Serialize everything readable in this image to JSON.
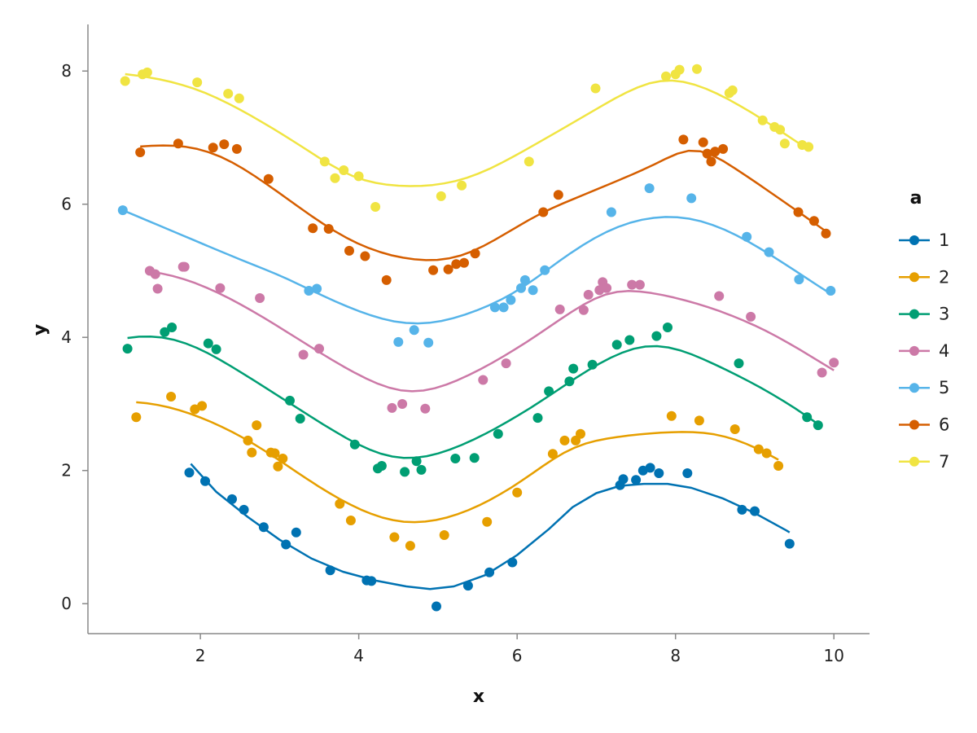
{
  "chart_data": {
    "type": "scatter",
    "xlabel": "x",
    "ylabel": "y",
    "xlim": [
      0.58,
      10.45
    ],
    "ylim": [
      -0.45,
      8.7
    ],
    "xticks": [
      2,
      4,
      6,
      8,
      10
    ],
    "yticks": [
      0,
      2,
      4,
      6,
      8
    ],
    "grid": false,
    "legend": {
      "title": "a",
      "position": "right"
    },
    "series": [
      {
        "name": "1",
        "color": "#0072B2",
        "points": [
          [
            1.86,
            1.97
          ],
          [
            2.06,
            1.84
          ],
          [
            2.4,
            1.57
          ],
          [
            2.55,
            1.41
          ],
          [
            2.8,
            1.15
          ],
          [
            3.08,
            0.89
          ],
          [
            3.21,
            1.07
          ],
          [
            3.64,
            0.5
          ],
          [
            4.1,
            0.35
          ],
          [
            4.16,
            0.34
          ],
          [
            4.98,
            -0.04
          ],
          [
            5.38,
            0.27
          ],
          [
            5.65,
            0.47
          ],
          [
            5.94,
            0.62
          ],
          [
            7.3,
            1.78
          ],
          [
            7.34,
            1.87
          ],
          [
            7.5,
            1.86
          ],
          [
            7.59,
            2.0
          ],
          [
            7.68,
            2.04
          ],
          [
            7.79,
            1.96
          ],
          [
            8.15,
            1.96
          ],
          [
            8.84,
            1.41
          ],
          [
            9.0,
            1.39
          ],
          [
            9.44,
            0.9
          ]
        ],
        "fit": [
          [
            1.88,
            2.1
          ],
          [
            2.2,
            1.68
          ],
          [
            2.6,
            1.3
          ],
          [
            3.0,
            0.96
          ],
          [
            3.4,
            0.68
          ],
          [
            3.8,
            0.48
          ],
          [
            4.2,
            0.35
          ],
          [
            4.6,
            0.26
          ],
          [
            4.9,
            0.22
          ],
          [
            5.2,
            0.26
          ],
          [
            5.6,
            0.43
          ],
          [
            6.0,
            0.73
          ],
          [
            6.4,
            1.12
          ],
          [
            6.7,
            1.45
          ],
          [
            7.0,
            1.66
          ],
          [
            7.3,
            1.77
          ],
          [
            7.6,
            1.8
          ],
          [
            7.9,
            1.8
          ],
          [
            8.2,
            1.74
          ],
          [
            8.6,
            1.58
          ],
          [
            9.0,
            1.36
          ],
          [
            9.4,
            1.1
          ],
          [
            9.44,
            1.07
          ]
        ]
      },
      {
        "name": "2",
        "color": "#E69F00",
        "points": [
          [
            1.19,
            2.8
          ],
          [
            1.63,
            3.11
          ],
          [
            1.93,
            2.92
          ],
          [
            2.02,
            2.97
          ],
          [
            2.6,
            2.45
          ],
          [
            2.65,
            2.27
          ],
          [
            2.71,
            2.68
          ],
          [
            2.89,
            2.27
          ],
          [
            2.94,
            2.26
          ],
          [
            2.98,
            2.06
          ],
          [
            3.04,
            2.18
          ],
          [
            3.76,
            1.5
          ],
          [
            3.9,
            1.25
          ],
          [
            4.45,
            1.0
          ],
          [
            4.65,
            0.87
          ],
          [
            5.08,
            1.03
          ],
          [
            5.62,
            1.23
          ],
          [
            6.0,
            1.67
          ],
          [
            6.45,
            2.25
          ],
          [
            6.6,
            2.45
          ],
          [
            6.74,
            2.45
          ],
          [
            6.8,
            2.55
          ],
          [
            7.95,
            2.82
          ],
          [
            8.3,
            2.75
          ],
          [
            8.75,
            2.62
          ],
          [
            9.05,
            2.32
          ],
          [
            9.15,
            2.26
          ],
          [
            9.3,
            2.07
          ]
        ]
      },
      {
        "name": "3",
        "color": "#009E73",
        "points": [
          [
            1.08,
            3.83
          ],
          [
            1.55,
            4.08
          ],
          [
            1.64,
            4.15
          ],
          [
            2.1,
            3.91
          ],
          [
            2.2,
            3.82
          ],
          [
            3.13,
            3.05
          ],
          [
            3.26,
            2.78
          ],
          [
            3.95,
            2.39
          ],
          [
            4.24,
            2.03
          ],
          [
            4.29,
            2.07
          ],
          [
            4.58,
            1.98
          ],
          [
            4.73,
            2.14
          ],
          [
            4.79,
            2.01
          ],
          [
            5.22,
            2.18
          ],
          [
            5.46,
            2.19
          ],
          [
            5.76,
            2.55
          ],
          [
            6.26,
            2.79
          ],
          [
            6.4,
            3.19
          ],
          [
            6.66,
            3.34
          ],
          [
            6.71,
            3.53
          ],
          [
            6.95,
            3.59
          ],
          [
            7.26,
            3.89
          ],
          [
            7.42,
            3.96
          ],
          [
            7.76,
            4.02
          ],
          [
            7.9,
            4.15
          ],
          [
            8.8,
            3.61
          ],
          [
            9.66,
            2.8
          ],
          [
            9.8,
            2.68
          ]
        ]
      },
      {
        "name": "4",
        "color": "#CC79A7",
        "points": [
          [
            1.36,
            5.0
          ],
          [
            1.43,
            4.95
          ],
          [
            1.46,
            4.73
          ],
          [
            1.78,
            5.06
          ],
          [
            1.8,
            5.06
          ],
          [
            2.25,
            4.74
          ],
          [
            2.75,
            4.59
          ],
          [
            3.3,
            3.74
          ],
          [
            3.5,
            3.83
          ],
          [
            4.42,
            2.94
          ],
          [
            4.55,
            3.0
          ],
          [
            4.84,
            2.93
          ],
          [
            5.57,
            3.36
          ],
          [
            5.86,
            3.61
          ],
          [
            6.54,
            4.42
          ],
          [
            6.84,
            4.41
          ],
          [
            6.9,
            4.64
          ],
          [
            7.04,
            4.71
          ],
          [
            7.08,
            4.83
          ],
          [
            7.13,
            4.74
          ],
          [
            7.45,
            4.79
          ],
          [
            7.55,
            4.79
          ],
          [
            8.55,
            4.62
          ],
          [
            8.95,
            4.31
          ],
          [
            9.85,
            3.47
          ],
          [
            10.0,
            3.62
          ]
        ]
      },
      {
        "name": "5",
        "color": "#56B4E9",
        "points": [
          [
            1.02,
            5.91
          ],
          [
            3.37,
            4.7
          ],
          [
            3.47,
            4.73
          ],
          [
            4.5,
            3.93
          ],
          [
            4.7,
            4.11
          ],
          [
            4.88,
            3.92
          ],
          [
            5.72,
            4.45
          ],
          [
            5.83,
            4.45
          ],
          [
            5.92,
            4.56
          ],
          [
            6.05,
            4.74
          ],
          [
            6.1,
            4.86
          ],
          [
            6.2,
            4.71
          ],
          [
            6.35,
            5.01
          ],
          [
            7.19,
            5.88
          ],
          [
            7.67,
            6.24
          ],
          [
            8.2,
            6.09
          ],
          [
            8.9,
            5.51
          ],
          [
            9.18,
            5.28
          ],
          [
            9.56,
            4.87
          ],
          [
            9.96,
            4.7
          ]
        ]
      },
      {
        "name": "6",
        "color": "#D55E00",
        "points": [
          [
            1.24,
            6.78
          ],
          [
            1.72,
            6.91
          ],
          [
            2.16,
            6.85
          ],
          [
            2.3,
            6.9
          ],
          [
            2.46,
            6.83
          ],
          [
            2.86,
            6.38
          ],
          [
            3.42,
            5.64
          ],
          [
            3.62,
            5.63
          ],
          [
            3.88,
            5.3
          ],
          [
            4.08,
            5.22
          ],
          [
            4.35,
            4.86
          ],
          [
            4.94,
            5.01
          ],
          [
            5.13,
            5.02
          ],
          [
            5.23,
            5.1
          ],
          [
            5.33,
            5.12
          ],
          [
            5.47,
            5.26
          ],
          [
            6.33,
            5.88
          ],
          [
            6.52,
            6.14
          ],
          [
            8.1,
            6.97
          ],
          [
            8.35,
            6.93
          ],
          [
            8.4,
            6.76
          ],
          [
            8.45,
            6.64
          ],
          [
            8.5,
            6.79
          ],
          [
            8.6,
            6.83
          ],
          [
            9.55,
            5.88
          ],
          [
            9.75,
            5.75
          ],
          [
            9.9,
            5.56
          ]
        ]
      },
      {
        "name": "7",
        "color": "#F0E442",
        "points": [
          [
            1.05,
            7.85
          ],
          [
            1.27,
            7.95
          ],
          [
            1.33,
            7.98
          ],
          [
            1.96,
            7.83
          ],
          [
            2.35,
            7.66
          ],
          [
            2.49,
            7.59
          ],
          [
            3.57,
            6.64
          ],
          [
            3.7,
            6.39
          ],
          [
            3.81,
            6.51
          ],
          [
            4.0,
            6.42
          ],
          [
            4.21,
            5.96
          ],
          [
            5.04,
            6.12
          ],
          [
            5.3,
            6.28
          ],
          [
            6.15,
            6.64
          ],
          [
            6.99,
            7.74
          ],
          [
            7.88,
            7.92
          ],
          [
            8.0,
            7.95
          ],
          [
            8.05,
            8.02
          ],
          [
            8.27,
            8.03
          ],
          [
            8.68,
            7.67
          ],
          [
            8.72,
            7.71
          ],
          [
            9.1,
            7.26
          ],
          [
            9.25,
            7.16
          ],
          [
            9.32,
            7.12
          ],
          [
            9.38,
            6.91
          ],
          [
            9.6,
            6.89
          ],
          [
            9.68,
            6.86
          ]
        ]
      }
    ]
  }
}
